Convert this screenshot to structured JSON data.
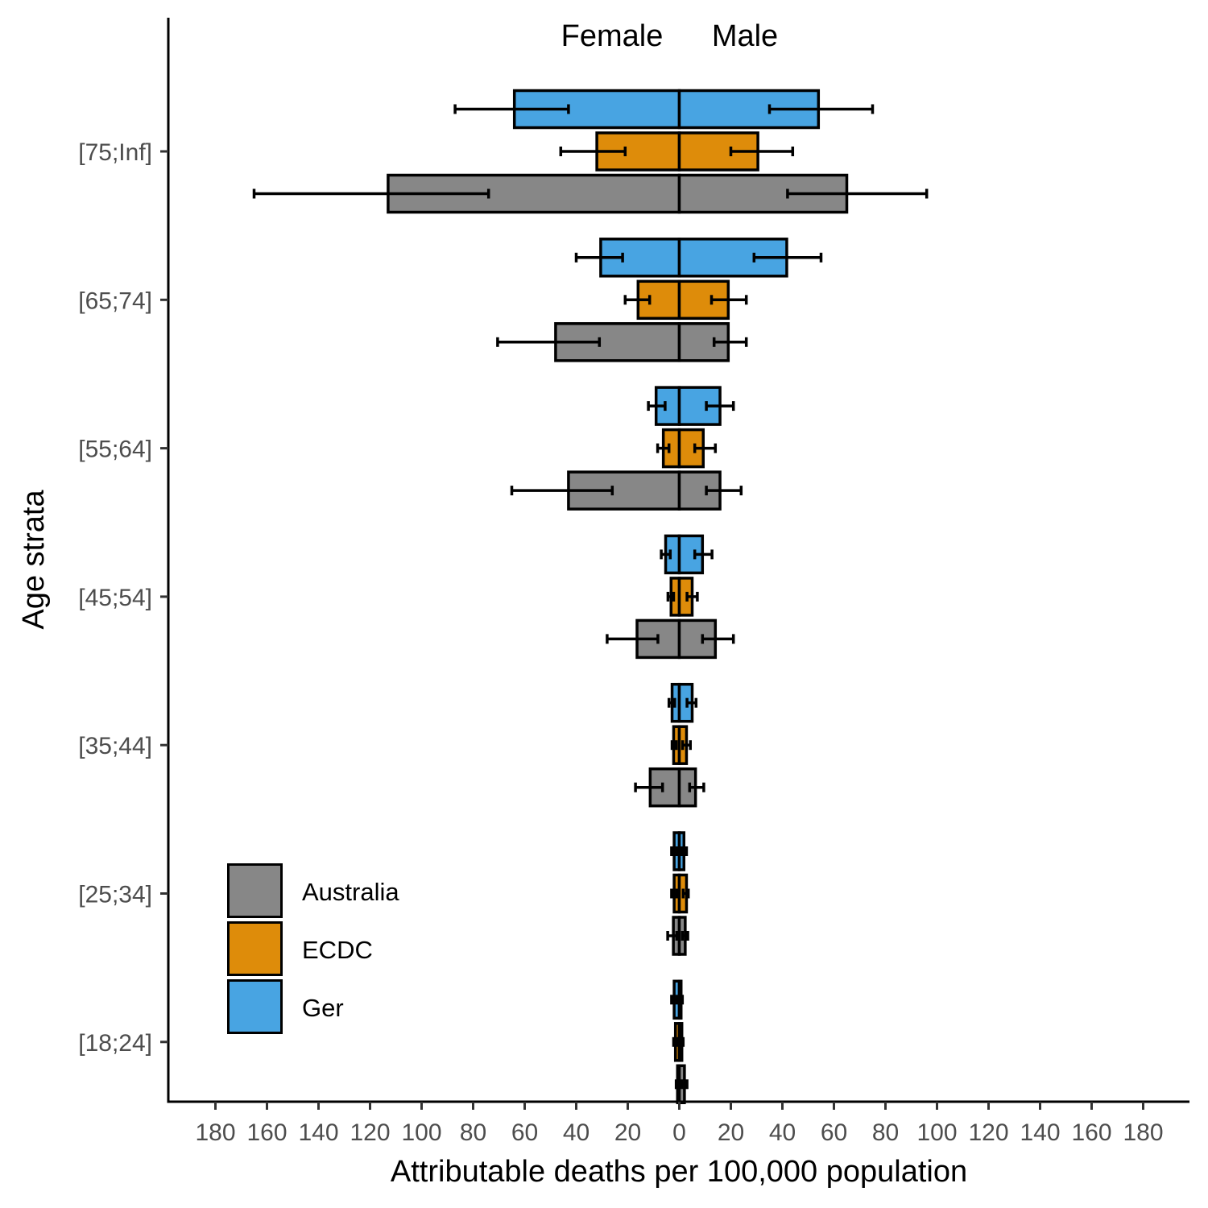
{
  "chart_data": {
    "type": "bar",
    "subtype": "population-pyramid-with-error-bars",
    "title_left": "Female",
    "title_right": "Male",
    "xlabel": "Attributable deaths per 100,000 population",
    "ylabel": "Age strata",
    "xlim": [
      -198,
      198
    ],
    "x_ticks": [
      -180,
      -160,
      -140,
      -120,
      -100,
      -80,
      -60,
      -40,
      -20,
      0,
      20,
      40,
      60,
      80,
      100,
      120,
      140,
      160,
      180
    ],
    "x_tick_labels": [
      "180",
      "160",
      "140",
      "120",
      "100",
      "80",
      "60",
      "40",
      "20",
      "0",
      "20",
      "40",
      "60",
      "80",
      "100",
      "120",
      "140",
      "160",
      "180"
    ],
    "categories": [
      "[75;Inf]",
      "[65;74]",
      "[55;64]",
      "[45;54]",
      "[35;44]",
      "[25;34]",
      "[18;24]"
    ],
    "legend": {
      "position": "bottom-left",
      "entries": [
        {
          "name": "Australia",
          "color": "#878787"
        },
        {
          "name": "ECDC",
          "color": "#DE8C0A"
        },
        {
          "name": "Ger",
          "color": "#48A4E2"
        }
      ]
    },
    "series": [
      {
        "name": "Ger",
        "color": "#48A4E2",
        "female": [
          64,
          30.5,
          9,
          5.3,
          2.8,
          2,
          2
        ],
        "female_ci": [
          [
            43,
            87
          ],
          [
            22,
            40
          ],
          [
            5.5,
            12
          ],
          [
            3.5,
            7
          ],
          [
            1.8,
            4
          ],
          [
            1,
            3
          ],
          [
            1,
            3
          ]
        ],
        "male": [
          54,
          41.7,
          15.8,
          9,
          5,
          1.8,
          0.7
        ],
        "male_ci": [
          [
            35,
            75
          ],
          [
            29,
            55
          ],
          [
            10.5,
            21
          ],
          [
            6,
            12.7
          ],
          [
            3,
            6.5
          ],
          [
            0.8,
            2.8
          ],
          [
            0.3,
            1.2
          ]
        ]
      },
      {
        "name": "ECDC",
        "color": "#DE8C0A",
        "female": [
          32,
          16,
          6.2,
          3.2,
          2.2,
          2,
          1.5
        ],
        "female_ci": [
          [
            21,
            46
          ],
          [
            11.5,
            21
          ],
          [
            4,
            8.4
          ],
          [
            2.2,
            4.4
          ],
          [
            1.2,
            2.8
          ],
          [
            1,
            3
          ],
          [
            0.8,
            2.2
          ]
        ],
        "male": [
          30.5,
          19,
          9.3,
          5,
          2.8,
          2.8,
          1
        ],
        "male_ci": [
          [
            20,
            44
          ],
          [
            12.5,
            26
          ],
          [
            6,
            14
          ],
          [
            3,
            7
          ],
          [
            1.3,
            4.3
          ],
          [
            1.5,
            3.5
          ],
          [
            0.5,
            1.5
          ]
        ]
      },
      {
        "name": "Australia",
        "color": "#878787",
        "female": [
          113,
          48,
          43,
          16.4,
          11.3,
          2.3,
          0.7
        ],
        "female_ci": [
          [
            74,
            165
          ],
          [
            31,
            70.5
          ],
          [
            26,
            65
          ],
          [
            8.3,
            28
          ],
          [
            6.5,
            17
          ],
          [
            1,
            4.5
          ],
          [
            0.3,
            1.2
          ]
        ],
        "male": [
          65,
          19,
          15.8,
          14,
          6.3,
          2.3,
          2
        ],
        "male_ci": [
          [
            42,
            96
          ],
          [
            13.5,
            26
          ],
          [
            10.5,
            24
          ],
          [
            9,
            21
          ],
          [
            4,
            9.5
          ],
          [
            1.2,
            3.3
          ],
          [
            1,
            3
          ]
        ]
      }
    ]
  }
}
